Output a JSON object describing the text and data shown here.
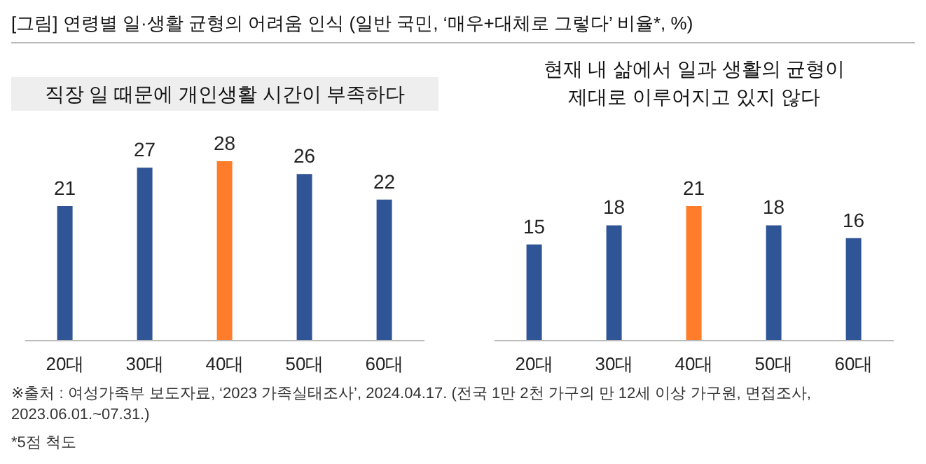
{
  "chart_data": [
    {
      "type": "bar",
      "title": "직장 일 때문에 개인생활 시간이 부족하다",
      "categories": [
        "20대",
        "30대",
        "40대",
        "50대",
        "60대"
      ],
      "values": [
        21,
        27,
        28,
        26,
        22
      ],
      "colors": [
        "#2f5597",
        "#2f5597",
        "#ff7c2a",
        "#2f5597",
        "#2f5597"
      ],
      "data_labels": true,
      "annotations": [
        "[그림] 연령별 일·생활 균형의 어려움 인식 (일반 국민, ‘매우+대체로 그렇다’ 비율*, %)"
      ]
    },
    {
      "type": "bar",
      "title": "현재 내 삶에서 일과 생활의 균형이\n제대로 이루어지고 있지 않다",
      "categories": [
        "20대",
        "30대",
        "40대",
        "50대",
        "60대"
      ],
      "values": [
        15,
        18,
        21,
        18,
        16
      ],
      "colors": [
        "#2f5597",
        "#2f5597",
        "#ff7c2a",
        "#2f5597",
        "#2f5597"
      ],
      "data_labels": true,
      "annotations": [
        "※출처 : 여성가족부 보도자료, ‘2023 가족실태조사’, 2024.04.17. (전국 1만 2천 가구의 만 12세 이상 가구원, 면접조사, 2023.06.01.~07.31.)",
        "*5점 척도"
      ]
    }
  ]
}
